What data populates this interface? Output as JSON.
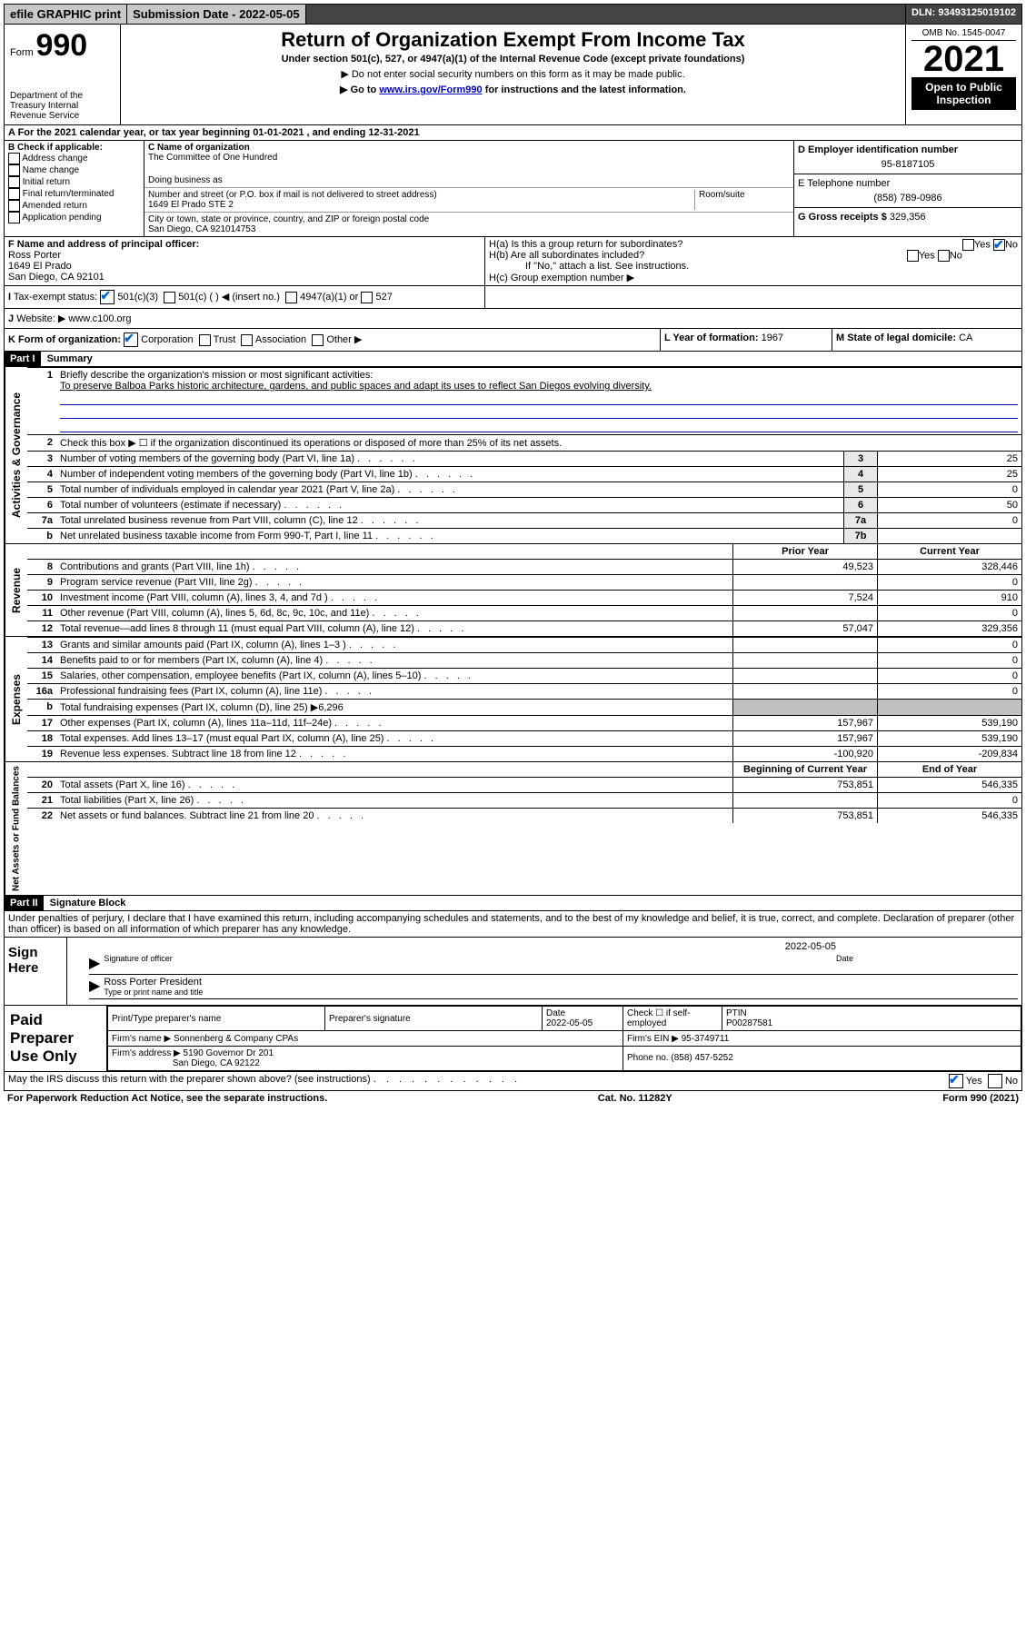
{
  "topbar": {
    "efile": "efile GRAPHIC print",
    "submission": "Submission Date - 2022-05-05",
    "dln": "DLN: 93493125019102"
  },
  "header": {
    "form_label": "Form",
    "form_num": "990",
    "dept": "Department of the Treasury Internal Revenue Service",
    "title": "Return of Organization Exempt From Income Tax",
    "sub1": "Under section 501(c), 527, or 4947(a)(1) of the Internal Revenue Code (except private foundations)",
    "sub2": "▶ Do not enter social security numbers on this form as it may be made public.",
    "sub3_pre": "▶ Go to ",
    "sub3_link": "www.irs.gov/Form990",
    "sub3_post": " for instructions and the latest information.",
    "omb": "OMB No. 1545-0047",
    "year": "2021",
    "open": "Open to Public Inspection"
  },
  "row_a": "A  For the 2021 calendar year, or tax year beginning 01-01-2021   , and ending 12-31-2021",
  "block_b": {
    "label": "B Check if applicable:",
    "opts": [
      "Address change",
      "Name change",
      "Initial return",
      "Final return/terminated",
      "Amended return",
      "Application pending"
    ]
  },
  "block_c": {
    "org_label": "C Name of organization",
    "org_name": "The Committee of One Hundred",
    "dba_label": "Doing business as",
    "street_label": "Number and street (or P.O. box if mail is not delivered to street address)",
    "street": "1649 El Prado STE 2",
    "room_label": "Room/suite",
    "city_label": "City or town, state or province, country, and ZIP or foreign postal code",
    "city": "San Diego, CA  921014753"
  },
  "block_d": {
    "label": "D Employer identification number",
    "value": "95-8187105"
  },
  "block_e": {
    "label": "E Telephone number",
    "value": "(858) 789-0986"
  },
  "block_g": {
    "label": "G Gross receipts $",
    "value": "329,356"
  },
  "block_f": {
    "label": "F Name and address of principal officer:",
    "name": "Ross Porter",
    "addr1": "1649 El Prado",
    "addr2": "San Diego, CA  92101"
  },
  "block_h": {
    "ha": "H(a)  Is this a group return for subordinates?",
    "hb": "H(b)  Are all subordinates included?",
    "hb_note": "If \"No,\" attach a list. See instructions.",
    "hc": "H(c)  Group exemption number ▶",
    "yes": "Yes",
    "no": "No"
  },
  "row_i": {
    "label": "I",
    "text": "Tax-exempt status:",
    "c3": "501(c)(3)",
    "c": "501(c) (  ) ◀ (insert no.)",
    "a1": "4947(a)(1) or",
    "s527": "527"
  },
  "row_j": {
    "label": "J",
    "text": "Website: ▶",
    "value": "www.c100.org"
  },
  "row_k": {
    "label": "K Form of organization:",
    "corp": "Corporation",
    "trust": "Trust",
    "assoc": "Association",
    "other": "Other ▶"
  },
  "row_l": {
    "label": "L Year of formation:",
    "value": "1967"
  },
  "row_m": {
    "label": "M State of legal domicile:",
    "value": "CA"
  },
  "part1": {
    "hdr": "Part I",
    "title": "Summary"
  },
  "activities": {
    "vtab": "Activities & Governance",
    "l1": "Briefly describe the organization's mission or most significant activities:",
    "l1_text": "To preserve Balboa Parks historic architecture, gardens, and public spaces and adapt its uses to reflect San Diegos evolving diversity.",
    "l2": "Check this box ▶ ☐ if the organization discontinued its operations or disposed of more than 25% of its net assets.",
    "rows": [
      {
        "n": "3",
        "t": "Number of voting members of the governing body (Part VI, line 1a)",
        "box": "3",
        "v": "25"
      },
      {
        "n": "4",
        "t": "Number of independent voting members of the governing body (Part VI, line 1b)",
        "box": "4",
        "v": "25"
      },
      {
        "n": "5",
        "t": "Total number of individuals employed in calendar year 2021 (Part V, line 2a)",
        "box": "5",
        "v": "0"
      },
      {
        "n": "6",
        "t": "Total number of volunteers (estimate if necessary)",
        "box": "6",
        "v": "50"
      },
      {
        "n": "7a",
        "t": "Total unrelated business revenue from Part VIII, column (C), line 12",
        "box": "7a",
        "v": "0"
      },
      {
        "n": "b",
        "t": "Net unrelated business taxable income from Form 990-T, Part I, line 11",
        "box": "7b",
        "v": ""
      }
    ]
  },
  "revenue": {
    "vtab": "Revenue",
    "hdr_prior": "Prior Year",
    "hdr_curr": "Current Year",
    "rows": [
      {
        "n": "8",
        "t": "Contributions and grants (Part VIII, line 1h)",
        "p": "49,523",
        "c": "328,446"
      },
      {
        "n": "9",
        "t": "Program service revenue (Part VIII, line 2g)",
        "p": "",
        "c": "0"
      },
      {
        "n": "10",
        "t": "Investment income (Part VIII, column (A), lines 3, 4, and 7d )",
        "p": "7,524",
        "c": "910"
      },
      {
        "n": "11",
        "t": "Other revenue (Part VIII, column (A), lines 5, 6d, 8c, 9c, 10c, and 11e)",
        "p": "",
        "c": "0"
      },
      {
        "n": "12",
        "t": "Total revenue—add lines 8 through 11 (must equal Part VIII, column (A), line 12)",
        "p": "57,047",
        "c": "329,356"
      }
    ]
  },
  "expenses": {
    "vtab": "Expenses",
    "rows": [
      {
        "n": "13",
        "t": "Grants and similar amounts paid (Part IX, column (A), lines 1–3 )",
        "p": "",
        "c": "0"
      },
      {
        "n": "14",
        "t": "Benefits paid to or for members (Part IX, column (A), line 4)",
        "p": "",
        "c": "0"
      },
      {
        "n": "15",
        "t": "Salaries, other compensation, employee benefits (Part IX, column (A), lines 5–10)",
        "p": "",
        "c": "0"
      },
      {
        "n": "16a",
        "t": "Professional fundraising fees (Part IX, column (A), line 11e)",
        "p": "",
        "c": "0"
      }
    ],
    "l16b": "Total fundraising expenses (Part IX, column (D), line 25) ▶6,296",
    "rows2": [
      {
        "n": "17",
        "t": "Other expenses (Part IX, column (A), lines 11a–11d, 11f–24e)",
        "p": "157,967",
        "c": "539,190"
      },
      {
        "n": "18",
        "t": "Total expenses. Add lines 13–17 (must equal Part IX, column (A), line 25)",
        "p": "157,967",
        "c": "539,190"
      },
      {
        "n": "19",
        "t": "Revenue less expenses. Subtract line 18 from line 12",
        "p": "-100,920",
        "c": "-209,834"
      }
    ]
  },
  "netassets": {
    "vtab": "Net Assets or Fund Balances",
    "hdr_beg": "Beginning of Current Year",
    "hdr_end": "End of Year",
    "rows": [
      {
        "n": "20",
        "t": "Total assets (Part X, line 16)",
        "p": "753,851",
        "c": "546,335"
      },
      {
        "n": "21",
        "t": "Total liabilities (Part X, line 26)",
        "p": "",
        "c": "0"
      },
      {
        "n": "22",
        "t": "Net assets or fund balances. Subtract line 21 from line 20",
        "p": "753,851",
        "c": "546,335"
      }
    ]
  },
  "part2": {
    "hdr": "Part II",
    "title": "Signature Block"
  },
  "sig": {
    "penalties": "Under penalties of perjury, I declare that I have examined this return, including accompanying schedules and statements, and to the best of my knowledge and belief, it is true, correct, and complete. Declaration of preparer (other than officer) is based on all information of which preparer has any knowledge.",
    "sign_here": "Sign Here",
    "date": "2022-05-05",
    "sig_label": "Signature of officer",
    "date_label": "Date",
    "name": "Ross Porter  President",
    "name_label": "Type or print name and title"
  },
  "prep": {
    "label": "Paid Preparer Use Only",
    "c1": "Print/Type preparer's name",
    "c2": "Preparer's signature",
    "c3": "Date",
    "c3v": "2022-05-05",
    "c4": "Check ☐ if self-employed",
    "c5": "PTIN",
    "c5v": "P00287581",
    "firm_label": "Firm's name    ▶",
    "firm": "Sonnenberg & Company CPAs",
    "ein_label": "Firm's EIN ▶",
    "ein": "95-3749711",
    "addr_label": "Firm's address ▶",
    "addr1": "5190 Governor Dr 201",
    "addr2": "San Diego, CA  92122",
    "phone_label": "Phone no.",
    "phone": "(858) 457-5252"
  },
  "mayirs": {
    "text": "May the IRS discuss this return with the preparer shown above? (see instructions)",
    "yes": "Yes",
    "no": "No"
  },
  "footer": {
    "left": "For Paperwork Reduction Act Notice, see the separate instructions.",
    "mid": "Cat. No. 11282Y",
    "right": "Form 990 (2021)"
  }
}
